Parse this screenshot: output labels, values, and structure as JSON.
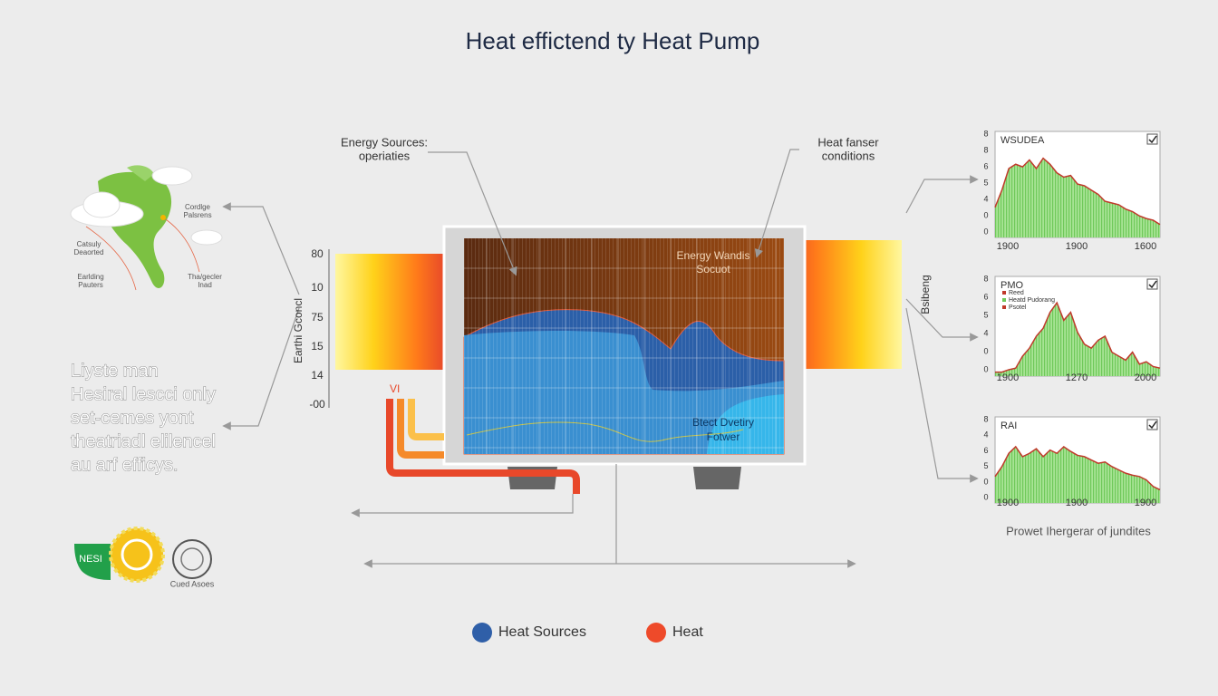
{
  "title": "Heat effictend ty Heat Pump",
  "annotations": {
    "energy_sources": [
      "Energy Sources:",
      "operiaties"
    ],
    "heat_transfer": [
      "Heat fanser",
      "conditions"
    ]
  },
  "map_labels": [
    [
      "Cordlge",
      "Palsrens"
    ],
    [
      "Catsuly",
      "Deaorted"
    ],
    [
      "Earlding",
      "Pauters"
    ],
    [
      "Tha/gecler",
      "Inad"
    ]
  ],
  "side_text": [
    "Liyste man",
    "Hesiral lescci only",
    "set-cemes yont",
    "theatriadl elilencel",
    "au arf efficys."
  ],
  "panel": {
    "y_axis_title": "Earthi Gconcl",
    "y_labels": [
      "80",
      "10",
      "75",
      "15",
      "14",
      "-00"
    ],
    "top_label": [
      "Energy Wandis",
      "Socuot"
    ],
    "bottom_label": [
      "Btect Dvetiry",
      "Fotwer"
    ],
    "pipe_label": "VI"
  },
  "side_label": "Bsibeng",
  "mini_charts": [
    {
      "title": "WSUDEA",
      "y_labels": [
        "8",
        "8",
        "6",
        "5",
        "4",
        "0",
        "0"
      ],
      "x_labels": [
        "1900",
        "1900",
        "1600"
      ]
    },
    {
      "title": "PMO",
      "legend": [
        "Reed",
        "Heatd Pudorang",
        "Psotel"
      ],
      "y_labels": [
        "8",
        "6",
        "5",
        "4",
        "0",
        "0"
      ],
      "x_labels": [
        "1900",
        "1270",
        "2000"
      ]
    },
    {
      "title": "RAI",
      "y_labels": [
        "8",
        "4",
        "6",
        "5",
        "0",
        "0"
      ],
      "x_labels": [
        "1900",
        "1900",
        "1900"
      ]
    }
  ],
  "mini_caption": "Prowet Ihergerar of jundites",
  "logos": {
    "badge": "NESI",
    "caption": "Cued Asoes"
  },
  "legend": [
    "Heat Sources",
    "Heat"
  ]
}
